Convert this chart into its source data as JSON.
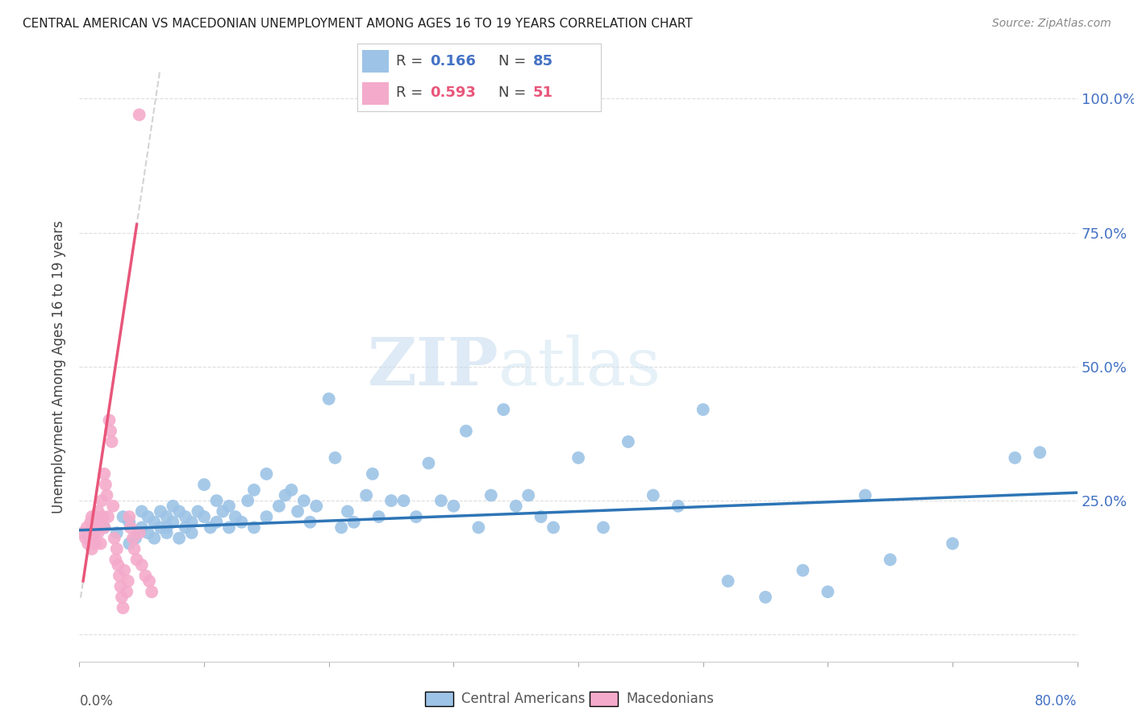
{
  "title": "CENTRAL AMERICAN VS MACEDONIAN UNEMPLOYMENT AMONG AGES 16 TO 19 YEARS CORRELATION CHART",
  "source": "Source: ZipAtlas.com",
  "ylabel": "Unemployment Among Ages 16 to 19 years",
  "legend_blue": {
    "R": 0.166,
    "N": 85,
    "label": "Central Americans"
  },
  "legend_pink": {
    "R": 0.593,
    "N": 51,
    "label": "Macedonians"
  },
  "yticks": [
    0.0,
    0.25,
    0.5,
    0.75,
    1.0
  ],
  "ytick_labels": [
    "",
    "25.0%",
    "50.0%",
    "75.0%",
    "100.0%"
  ],
  "xmin": 0.0,
  "xmax": 0.8,
  "ymin": -0.05,
  "ymax": 1.05,
  "blue_color": "#9DC3E6",
  "pink_color": "#F4ABCB",
  "trend_blue_color": "#2E75B6",
  "trend_pink_color": "#E8567A",
  "trend_dashed_color": "#C8C8C8",
  "watermark_zip": "ZIP",
  "watermark_atlas": "atlas",
  "blue_scatter_x": [
    0.02,
    0.03,
    0.035,
    0.04,
    0.04,
    0.045,
    0.05,
    0.05,
    0.055,
    0.055,
    0.06,
    0.06,
    0.065,
    0.065,
    0.07,
    0.07,
    0.07,
    0.075,
    0.075,
    0.08,
    0.08,
    0.085,
    0.085,
    0.09,
    0.09,
    0.095,
    0.1,
    0.1,
    0.105,
    0.11,
    0.11,
    0.115,
    0.12,
    0.12,
    0.125,
    0.13,
    0.135,
    0.14,
    0.14,
    0.15,
    0.15,
    0.16,
    0.165,
    0.17,
    0.175,
    0.18,
    0.185,
    0.19,
    0.2,
    0.205,
    0.21,
    0.215,
    0.22,
    0.23,
    0.235,
    0.24,
    0.25,
    0.26,
    0.27,
    0.28,
    0.29,
    0.3,
    0.31,
    0.32,
    0.33,
    0.34,
    0.35,
    0.36,
    0.37,
    0.38,
    0.4,
    0.42,
    0.44,
    0.46,
    0.48,
    0.5,
    0.52,
    0.55,
    0.58,
    0.6,
    0.63,
    0.65,
    0.7,
    0.75,
    0.77
  ],
  "blue_scatter_y": [
    0.2,
    0.19,
    0.22,
    0.17,
    0.21,
    0.18,
    0.2,
    0.23,
    0.19,
    0.22,
    0.18,
    0.21,
    0.2,
    0.23,
    0.19,
    0.22,
    0.2,
    0.21,
    0.24,
    0.18,
    0.23,
    0.2,
    0.22,
    0.19,
    0.21,
    0.23,
    0.22,
    0.28,
    0.2,
    0.25,
    0.21,
    0.23,
    0.2,
    0.24,
    0.22,
    0.21,
    0.25,
    0.2,
    0.27,
    0.22,
    0.3,
    0.24,
    0.26,
    0.27,
    0.23,
    0.25,
    0.21,
    0.24,
    0.44,
    0.33,
    0.2,
    0.23,
    0.21,
    0.26,
    0.3,
    0.22,
    0.25,
    0.25,
    0.22,
    0.32,
    0.25,
    0.24,
    0.38,
    0.2,
    0.26,
    0.42,
    0.24,
    0.26,
    0.22,
    0.2,
    0.33,
    0.2,
    0.36,
    0.26,
    0.24,
    0.42,
    0.1,
    0.07,
    0.12,
    0.08,
    0.26,
    0.14,
    0.17,
    0.33,
    0.34
  ],
  "pink_scatter_x": [
    0.003,
    0.005,
    0.006,
    0.007,
    0.008,
    0.009,
    0.01,
    0.01,
    0.011,
    0.011,
    0.012,
    0.013,
    0.013,
    0.014,
    0.015,
    0.015,
    0.016,
    0.017,
    0.018,
    0.019,
    0.02,
    0.02,
    0.021,
    0.022,
    0.023,
    0.024,
    0.025,
    0.026,
    0.027,
    0.028,
    0.029,
    0.03,
    0.031,
    0.032,
    0.033,
    0.034,
    0.035,
    0.036,
    0.038,
    0.039,
    0.04,
    0.041,
    0.043,
    0.044,
    0.046,
    0.048,
    0.05,
    0.053,
    0.056,
    0.058,
    0.048
  ],
  "pink_scatter_y": [
    0.19,
    0.18,
    0.2,
    0.17,
    0.19,
    0.21,
    0.16,
    0.22,
    0.18,
    0.2,
    0.19,
    0.17,
    0.22,
    0.2,
    0.23,
    0.19,
    0.21,
    0.17,
    0.25,
    0.22,
    0.2,
    0.3,
    0.28,
    0.26,
    0.22,
    0.4,
    0.38,
    0.36,
    0.24,
    0.18,
    0.14,
    0.16,
    0.13,
    0.11,
    0.09,
    0.07,
    0.05,
    0.12,
    0.08,
    0.1,
    0.22,
    0.2,
    0.18,
    0.16,
    0.14,
    0.19,
    0.13,
    0.11,
    0.1,
    0.08,
    0.97
  ]
}
